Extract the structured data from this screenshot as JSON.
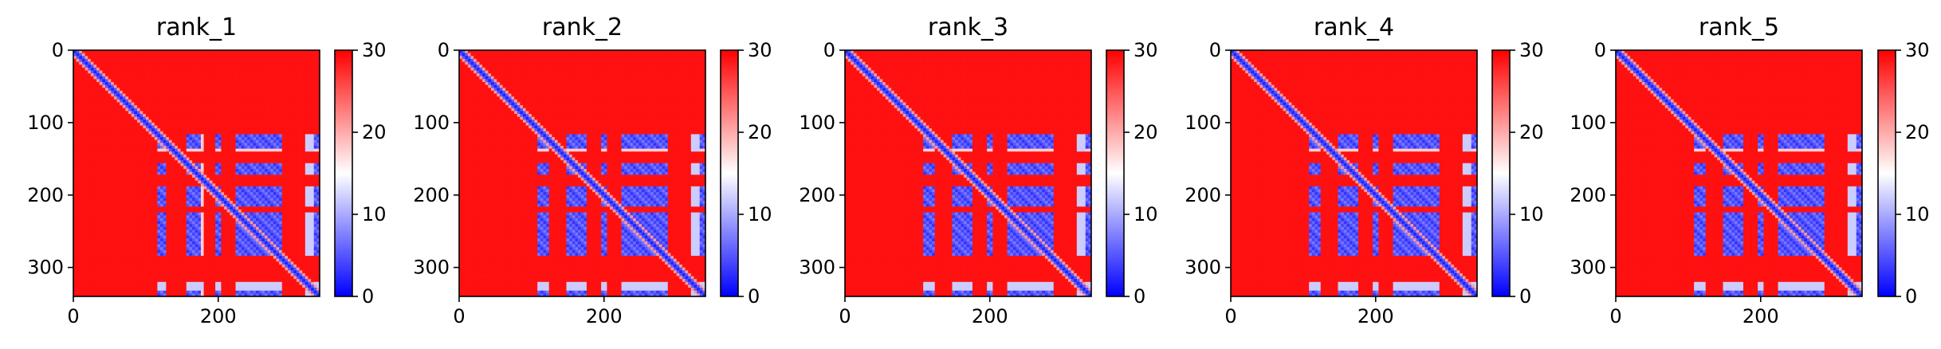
{
  "chart_data": [
    {
      "type": "heatmap",
      "title": "rank_1",
      "matrix_size": 340,
      "xlabel": "",
      "ylabel": "",
      "xlim": [
        0,
        340
      ],
      "ylim": [
        340,
        0
      ],
      "x_ticks": [
        0,
        200
      ],
      "y_ticks": [
        0,
        100,
        200,
        300
      ],
      "colorbar": {
        "range": [
          0,
          30
        ],
        "ticks": [
          0,
          10,
          20,
          30
        ],
        "colormap": "bwr"
      },
      "structure": {
        "diagonal_low": true,
        "low_block": [
          115,
          290
        ],
        "low_column_stripes": [
          [
            115,
            130
          ],
          [
            155,
            180
          ],
          [
            195,
            205
          ],
          [
            225,
            290
          ],
          [
            332,
            340
          ]
        ],
        "low_row_stripes": [
          [
            118,
            140
          ],
          [
            155,
            172
          ],
          [
            188,
            215
          ],
          [
            225,
            283
          ],
          [
            332,
            340
          ]
        ],
        "high_bands": [
          [
            138,
            150
          ],
          [
            176,
            186
          ],
          [
            216,
            223
          ]
        ],
        "background": "high"
      }
    },
    {
      "type": "heatmap",
      "title": "rank_2",
      "matrix_size": 340,
      "xlabel": "",
      "ylabel": "",
      "xlim": [
        0,
        340
      ],
      "ylim": [
        340,
        0
      ],
      "x_ticks": [
        0,
        200
      ],
      "y_ticks": [
        0,
        100,
        200,
        300
      ],
      "colorbar": {
        "range": [
          0,
          30
        ],
        "ticks": [
          0,
          10,
          20,
          30
        ],
        "colormap": "bwr"
      },
      "structure": {
        "diagonal_low": true,
        "low_block": [
          115,
          290
        ],
        "low_column_stripes": [
          [
            110,
            125
          ],
          [
            150,
            178
          ],
          [
            195,
            205
          ],
          [
            225,
            290
          ],
          [
            332,
            340
          ]
        ],
        "low_row_stripes": [
          [
            118,
            140
          ],
          [
            155,
            172
          ],
          [
            188,
            215
          ],
          [
            225,
            283
          ],
          [
            332,
            340
          ]
        ],
        "high_bands": [
          [
            138,
            150
          ],
          [
            176,
            186
          ],
          [
            216,
            223
          ]
        ],
        "background": "high"
      }
    },
    {
      "type": "heatmap",
      "title": "rank_3",
      "matrix_size": 340,
      "xlabel": "",
      "ylabel": "",
      "xlim": [
        0,
        340
      ],
      "ylim": [
        340,
        0
      ],
      "x_ticks": [
        0,
        200
      ],
      "y_ticks": [
        0,
        100,
        200,
        300
      ],
      "colorbar": {
        "range": [
          0,
          30
        ],
        "ticks": [
          0,
          10,
          20,
          30
        ],
        "colormap": "bwr"
      },
      "structure": {
        "diagonal_low": true,
        "low_block": [
          110,
          290
        ],
        "low_column_stripes": [
          [
            108,
            125
          ],
          [
            150,
            178
          ],
          [
            195,
            205
          ],
          [
            225,
            290
          ],
          [
            332,
            340
          ]
        ],
        "low_row_stripes": [
          [
            118,
            140
          ],
          [
            155,
            172
          ],
          [
            188,
            215
          ],
          [
            225,
            283
          ],
          [
            332,
            340
          ]
        ],
        "high_bands": [
          [
            138,
            150
          ],
          [
            176,
            186
          ],
          [
            216,
            223
          ]
        ],
        "background": "high"
      }
    },
    {
      "type": "heatmap",
      "title": "rank_4",
      "matrix_size": 340,
      "xlabel": "",
      "ylabel": "",
      "xlim": [
        0,
        340
      ],
      "ylim": [
        340,
        0
      ],
      "x_ticks": [
        0,
        200
      ],
      "y_ticks": [
        0,
        100,
        200,
        300
      ],
      "colorbar": {
        "range": [
          0,
          30
        ],
        "ticks": [
          0,
          10,
          20,
          30
        ],
        "colormap": "bwr"
      },
      "structure": {
        "diagonal_low": true,
        "low_block": [
          110,
          290
        ],
        "low_column_stripes": [
          [
            108,
            125
          ],
          [
            150,
            178
          ],
          [
            195,
            205
          ],
          [
            225,
            290
          ],
          [
            332,
            340
          ]
        ],
        "low_row_stripes": [
          [
            118,
            140
          ],
          [
            155,
            172
          ],
          [
            188,
            215
          ],
          [
            225,
            283
          ],
          [
            332,
            340
          ]
        ],
        "high_bands": [
          [
            138,
            150
          ],
          [
            176,
            186
          ],
          [
            216,
            223
          ]
        ],
        "background": "high"
      }
    },
    {
      "type": "heatmap",
      "title": "rank_5",
      "matrix_size": 340,
      "xlabel": "",
      "ylabel": "",
      "xlim": [
        0,
        340
      ],
      "ylim": [
        340,
        0
      ],
      "x_ticks": [
        0,
        200
      ],
      "y_ticks": [
        0,
        100,
        200,
        300
      ],
      "colorbar": {
        "range": [
          0,
          30
        ],
        "ticks": [
          0,
          10,
          20,
          30
        ],
        "colormap": "bwr"
      },
      "structure": {
        "diagonal_low": true,
        "low_block": [
          110,
          290
        ],
        "low_column_stripes": [
          [
            108,
            125
          ],
          [
            150,
            178
          ],
          [
            195,
            205
          ],
          [
            225,
            290
          ],
          [
            332,
            340
          ]
        ],
        "low_row_stripes": [
          [
            118,
            140
          ],
          [
            155,
            172
          ],
          [
            188,
            215
          ],
          [
            225,
            283
          ],
          [
            332,
            340
          ]
        ],
        "high_bands": [
          [
            138,
            150
          ],
          [
            176,
            186
          ],
          [
            216,
            223
          ]
        ],
        "background": "high"
      }
    }
  ],
  "colors": {
    "low": "#0000ff",
    "mid": "#ffffff",
    "high": "#ff0000"
  }
}
